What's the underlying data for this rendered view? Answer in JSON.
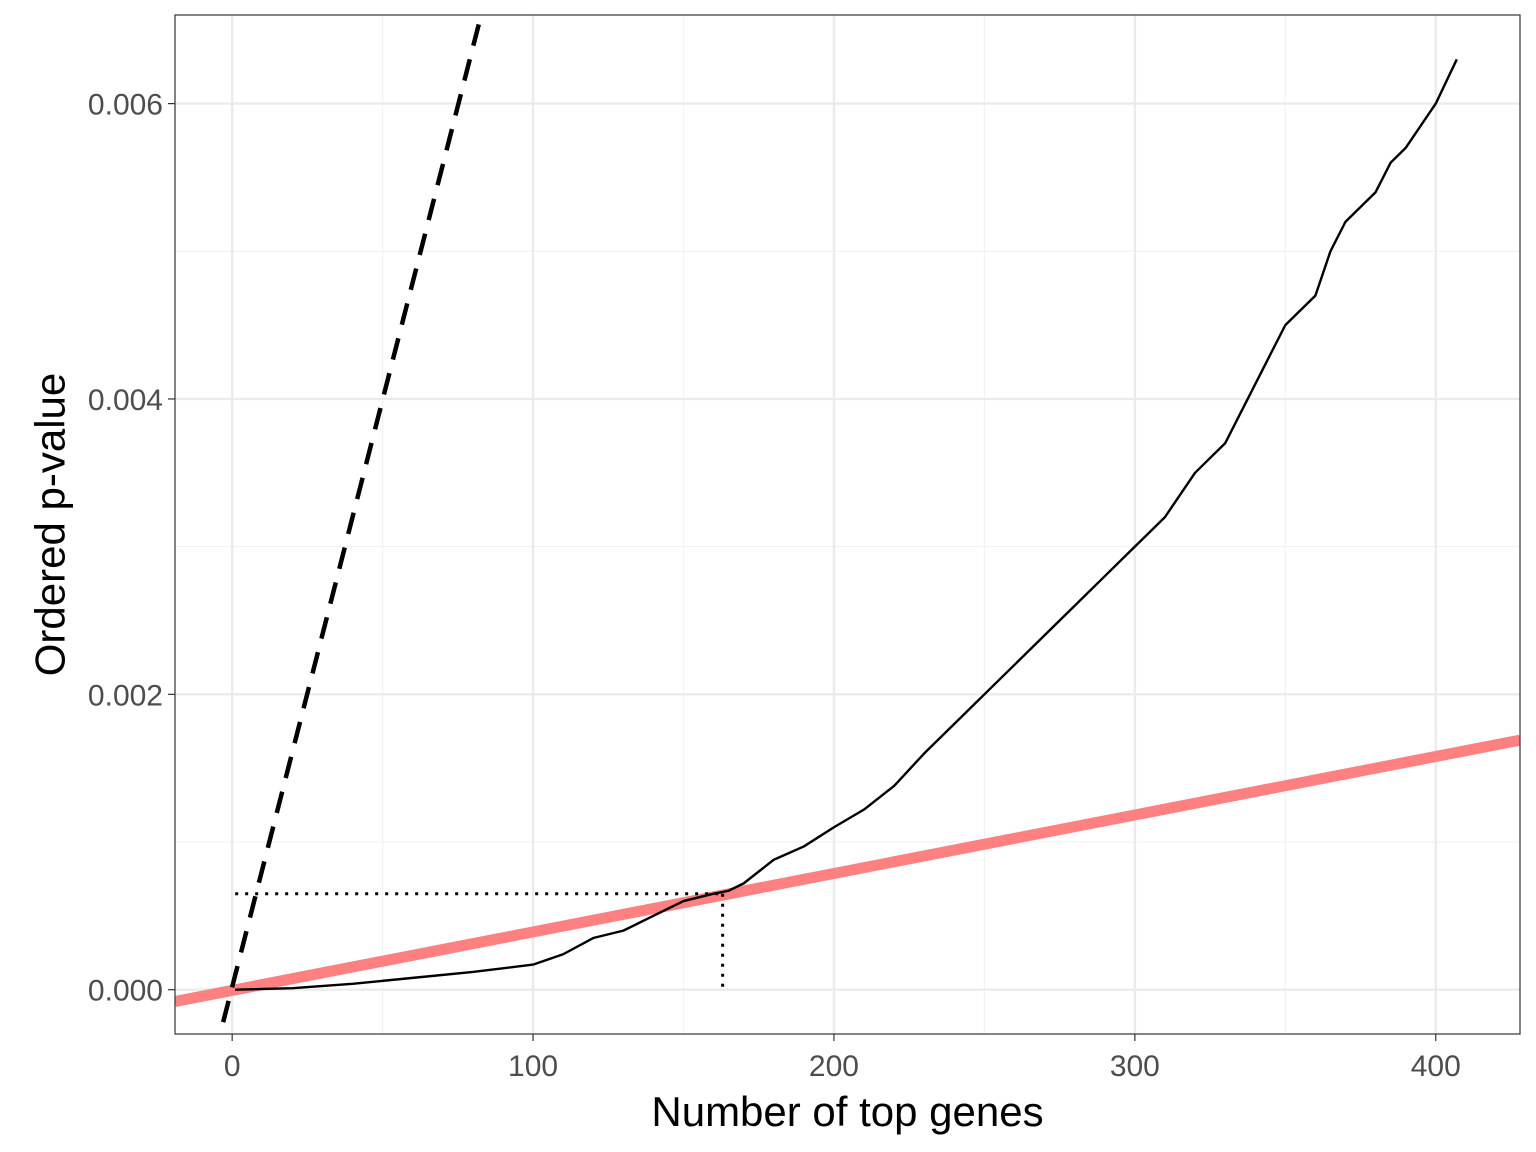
{
  "chart_data": {
    "type": "line",
    "title": "",
    "xlabel": "Number of top genes",
    "ylabel": "Ordered p-value",
    "xlim": [
      -19,
      428
    ],
    "ylim": [
      -0.0003,
      0.0066
    ],
    "grid": true,
    "legend": "none",
    "x_ticks": [
      0,
      100,
      200,
      300,
      400
    ],
    "x_tick_labels": [
      "0",
      "100",
      "200",
      "300",
      "400"
    ],
    "y_ticks": [
      0.0,
      0.002,
      0.004,
      0.006
    ],
    "y_tick_labels": [
      "0.000",
      "0.002",
      "0.004",
      "0.006"
    ],
    "series": [
      {
        "style": "solid-black",
        "x": [
          1,
          20,
          40,
          60,
          80,
          100,
          110,
          120,
          130,
          140,
          150,
          160,
          165,
          170,
          180,
          190,
          200,
          210,
          220,
          230,
          240,
          250,
          260,
          270,
          280,
          290,
          300,
          310,
          320,
          330,
          340,
          350,
          360,
          365,
          370,
          380,
          385,
          390,
          400,
          407
        ],
        "y": [
          0.0,
          1e-05,
          4e-05,
          8e-05,
          0.00012,
          0.00017,
          0.00024,
          0.00035,
          0.0004,
          0.0005,
          0.0006,
          0.00065,
          0.00067,
          0.00072,
          0.00088,
          0.00097,
          0.0011,
          0.00122,
          0.00138,
          0.0016,
          0.0018,
          0.002,
          0.0022,
          0.0024,
          0.0026,
          0.0028,
          0.003,
          0.0032,
          0.0035,
          0.0037,
          0.0041,
          0.0045,
          0.0047,
          0.005,
          0.0052,
          0.0054,
          0.0056,
          0.0057,
          0.006,
          0.0063
        ]
      },
      {
        "style": "dashed-black",
        "x": [
          -3,
          82
        ],
        "y": [
          -0.00022,
          0.00654
        ]
      },
      {
        "style": "thick-red",
        "color": "#ff8080",
        "x": [
          -19,
          428
        ],
        "y": [
          -8e-05,
          0.00169
        ]
      }
    ],
    "cutoff": {
      "x": 163,
      "y": 0.00065,
      "x_start": 1,
      "style": "dotted-black"
    }
  }
}
